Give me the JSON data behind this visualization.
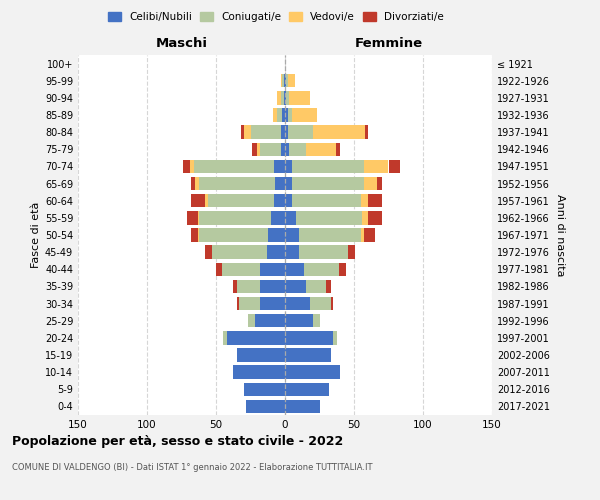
{
  "age_groups": [
    "0-4",
    "5-9",
    "10-14",
    "15-19",
    "20-24",
    "25-29",
    "30-34",
    "35-39",
    "40-44",
    "45-49",
    "50-54",
    "55-59",
    "60-64",
    "65-69",
    "70-74",
    "75-79",
    "80-84",
    "85-89",
    "90-94",
    "95-99",
    "100+"
  ],
  "birth_years": [
    "2017-2021",
    "2012-2016",
    "2007-2011",
    "2002-2006",
    "1997-2001",
    "1992-1996",
    "1987-1991",
    "1982-1986",
    "1977-1981",
    "1972-1976",
    "1967-1971",
    "1962-1966",
    "1957-1961",
    "1952-1956",
    "1947-1951",
    "1942-1946",
    "1937-1941",
    "1932-1936",
    "1927-1931",
    "1922-1926",
    "≤ 1921"
  ],
  "maschi": {
    "celibi": [
      28,
      30,
      38,
      35,
      42,
      22,
      18,
      18,
      18,
      13,
      12,
      10,
      8,
      7,
      8,
      3,
      3,
      2,
      1,
      1,
      0
    ],
    "coniugati": [
      0,
      0,
      0,
      0,
      3,
      5,
      15,
      17,
      28,
      40,
      50,
      52,
      48,
      55,
      58,
      15,
      22,
      4,
      2,
      1,
      0
    ],
    "vedovi": [
      0,
      0,
      0,
      0,
      0,
      0,
      0,
      0,
      0,
      0,
      1,
      1,
      2,
      3,
      3,
      2,
      5,
      3,
      3,
      1,
      0
    ],
    "divorziati": [
      0,
      0,
      0,
      0,
      0,
      0,
      2,
      3,
      4,
      5,
      5,
      8,
      10,
      3,
      5,
      4,
      2,
      0,
      0,
      0,
      0
    ]
  },
  "femmine": {
    "nubili": [
      25,
      32,
      40,
      33,
      35,
      20,
      18,
      15,
      14,
      10,
      10,
      8,
      5,
      5,
      5,
      3,
      2,
      2,
      1,
      1,
      0
    ],
    "coniugate": [
      0,
      0,
      0,
      0,
      3,
      5,
      15,
      15,
      25,
      36,
      45,
      48,
      50,
      52,
      52,
      12,
      18,
      3,
      2,
      1,
      0
    ],
    "vedove": [
      0,
      0,
      0,
      0,
      0,
      0,
      0,
      0,
      0,
      0,
      2,
      4,
      5,
      10,
      18,
      22,
      38,
      18,
      15,
      5,
      0
    ],
    "divorziate": [
      0,
      0,
      0,
      0,
      0,
      0,
      2,
      3,
      5,
      5,
      8,
      10,
      10,
      3,
      8,
      3,
      2,
      0,
      0,
      0,
      0
    ]
  },
  "colors": {
    "celibi": "#4472c4",
    "coniugati": "#b5c9a0",
    "vedovi": "#ffc966",
    "divorziati": "#c0392b"
  },
  "xlim": 150,
  "title": "Popolazione per età, sesso e stato civile - 2022",
  "subtitle": "COMUNE DI VALDENGO (BI) - Dati ISTAT 1° gennaio 2022 - Elaborazione TUTTITALIA.IT",
  "legend_labels": [
    "Celibi/Nubili",
    "Coniugati/e",
    "Vedovi/e",
    "Divorziati/e"
  ],
  "bg_color": "#f2f2f2",
  "plot_bg_color": "#ffffff"
}
